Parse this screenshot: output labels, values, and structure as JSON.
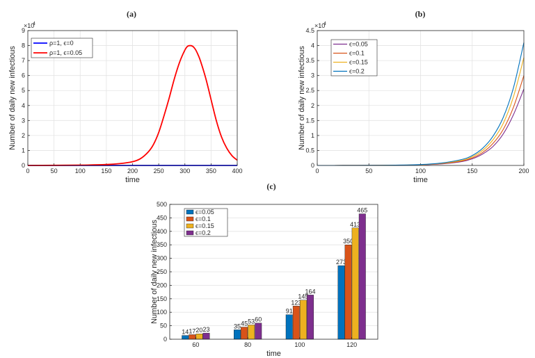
{
  "chart_data": [
    {
      "panel": "(a)",
      "type": "line",
      "xlabel": "time",
      "ylabel": "Number of daily new infectious",
      "xlim": [
        0,
        400
      ],
      "ylim": [
        0,
        90000
      ],
      "xticks": [
        "0",
        "50",
        "100",
        "150",
        "200",
        "250",
        "300",
        "350",
        "400"
      ],
      "yticks": [
        "0",
        "1",
        "2",
        "3",
        "4",
        "5",
        "6",
        "7",
        "8",
        "9"
      ],
      "y_exponent": "×10",
      "y_exponent_power": "4",
      "grid": true,
      "legend_position": "top-left",
      "series": [
        {
          "name": "ρ=1, ϵ=0",
          "color": "#0000ff",
          "x": [
            0,
            400
          ],
          "y": [
            0,
            0
          ]
        },
        {
          "name": "ρ=1, ϵ=0.05",
          "color": "#ff0000",
          "x": [
            0,
            100,
            150,
            175,
            200,
            215,
            230,
            240,
            250,
            260,
            270,
            280,
            290,
            300,
            305,
            310,
            315,
            320,
            325,
            330,
            340,
            350,
            360,
            370,
            380,
            390,
            400
          ],
          "y": [
            0,
            200,
            600,
            1200,
            2500,
            4500,
            9000,
            14000,
            22000,
            33000,
            45000,
            58000,
            69000,
            77000,
            79500,
            80000,
            79500,
            77500,
            74000,
            69500,
            58000,
            44000,
            30000,
            19000,
            11500,
            6500,
            3500
          ]
        }
      ]
    },
    {
      "panel": "(b)",
      "type": "line",
      "xlabel": "time",
      "ylabel": "Number of daily new infectious",
      "xlim": [
        0,
        200
      ],
      "ylim": [
        0,
        45000
      ],
      "xticks": [
        "0",
        "50",
        "100",
        "150",
        "200"
      ],
      "yticks": [
        "0",
        "0.5",
        "1",
        "1.5",
        "2",
        "2.5",
        "3",
        "3.5",
        "4",
        "4.5"
      ],
      "y_exponent": "×10",
      "y_exponent_power": "4",
      "grid": true,
      "legend_position": "top-left",
      "series": [
        {
          "name": "ϵ=0.05",
          "color": "#7e2f8e",
          "x": [
            0,
            25,
            50,
            75,
            100,
            120,
            140,
            150,
            160,
            170,
            180,
            190,
            200
          ],
          "y": [
            0,
            5,
            20,
            60,
            200,
            500,
            1300,
            2200,
            3800,
            6300,
            10500,
            17000,
            25500
          ]
        },
        {
          "name": "ϵ=0.1",
          "color": "#d95319",
          "x": [
            0,
            25,
            50,
            75,
            100,
            120,
            140,
            150,
            160,
            170,
            180,
            190,
            200
          ],
          "y": [
            0,
            5,
            25,
            70,
            230,
            600,
            1500,
            2500,
            4300,
            7300,
            12000,
            19500,
            30000
          ]
        },
        {
          "name": "ϵ=0.15",
          "color": "#edb120",
          "x": [
            0,
            25,
            50,
            75,
            100,
            120,
            140,
            150,
            160,
            170,
            180,
            190,
            200
          ],
          "y": [
            0,
            5,
            30,
            80,
            260,
            700,
            1700,
            2900,
            5000,
            8500,
            14000,
            23000,
            36000
          ]
        },
        {
          "name": "ϵ=0.2",
          "color": "#0072bd",
          "x": [
            0,
            25,
            50,
            75,
            100,
            120,
            140,
            150,
            160,
            170,
            180,
            190,
            200
          ],
          "y": [
            0,
            5,
            35,
            90,
            300,
            800,
            2000,
            3300,
            5700,
            9700,
            16000,
            26000,
            41000
          ]
        }
      ]
    },
    {
      "panel": "(c)",
      "type": "bar",
      "xlabel": "time",
      "ylabel": "Number of daily new infectious",
      "ylim": [
        0,
        500
      ],
      "yticks": [
        "0",
        "50",
        "100",
        "150",
        "200",
        "250",
        "300",
        "350",
        "400",
        "450",
        "500"
      ],
      "categories": [
        "60",
        "80",
        "100",
        "120"
      ],
      "grid": true,
      "legend_position": "top-left",
      "series": [
        {
          "name": "ϵ=0.05",
          "color": "#0072bd",
          "values": [
            14,
            35,
            91,
            273
          ]
        },
        {
          "name": "ϵ=0.1",
          "color": "#d95319",
          "values": [
            17,
            45,
            123,
            350
          ]
        },
        {
          "name": "ϵ=0.15",
          "color": "#edb120",
          "values": [
            20,
            53,
            145,
            413
          ]
        },
        {
          "name": "ϵ=0.2",
          "color": "#7e2f8e",
          "values": [
            23,
            60,
            164,
            465
          ]
        }
      ]
    }
  ]
}
